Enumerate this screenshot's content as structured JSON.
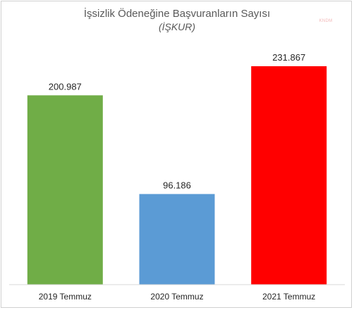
{
  "watermark": "KNDM",
  "chart_data": {
    "type": "bar",
    "title": "İşsizlik Ödeneğine Başvuranların Sayısı",
    "subtitle": "(İŞKUR)",
    "categories": [
      "2019 Temmuz",
      "2020 Temmuz",
      "2021 Temmuz"
    ],
    "values": [
      200987,
      96186,
      231867
    ],
    "value_labels": [
      "200.987",
      "96.186",
      "231.867"
    ],
    "colors": [
      "#70AD47",
      "#5B9BD5",
      "#FF0000"
    ],
    "xlabel": "",
    "ylabel": "",
    "ylim": [
      0,
      250000
    ],
    "grid": false,
    "legend": "none"
  }
}
